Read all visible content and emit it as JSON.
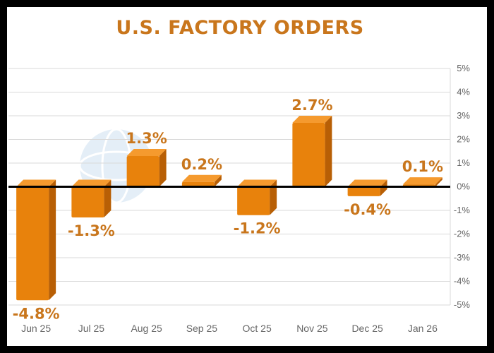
{
  "colors": {
    "accent": "#c9761c",
    "bar_front": "#e8820c",
    "bar_top": "#f59a2e",
    "bar_side": "#b85f05",
    "grid": "#d9d9d9",
    "zero_line": "#000000"
  },
  "chart_data": {
    "type": "bar",
    "title": "U.S. FACTORY ORDERS",
    "xlabel": "",
    "ylabel": "",
    "categories": [
      "Jun 25",
      "Jul 25",
      "Aug 25",
      "Sep 25",
      "Oct 25",
      "Nov 25",
      "Dec 25",
      "Jan 26"
    ],
    "values": [
      -4.8,
      -1.3,
      1.3,
      0.2,
      -1.2,
      2.7,
      -0.4,
      0.1
    ],
    "data_labels": [
      "-4.8%",
      "-1.3%",
      "1.3%",
      "0.2%",
      "-1.2%",
      "2.7%",
      "-0.4%",
      "0.1%"
    ],
    "ylim": [
      -5,
      5
    ],
    "yticks": [
      5,
      4,
      3,
      2,
      1,
      0,
      -1,
      -2,
      -3,
      -4,
      -5
    ],
    "ytick_labels": [
      "5%",
      "4%",
      "3%",
      "2%",
      "1%",
      "0%",
      "-1%",
      "-2%",
      "-3%",
      "-4%",
      "-5%"
    ],
    "grid": true,
    "legend": "none"
  }
}
